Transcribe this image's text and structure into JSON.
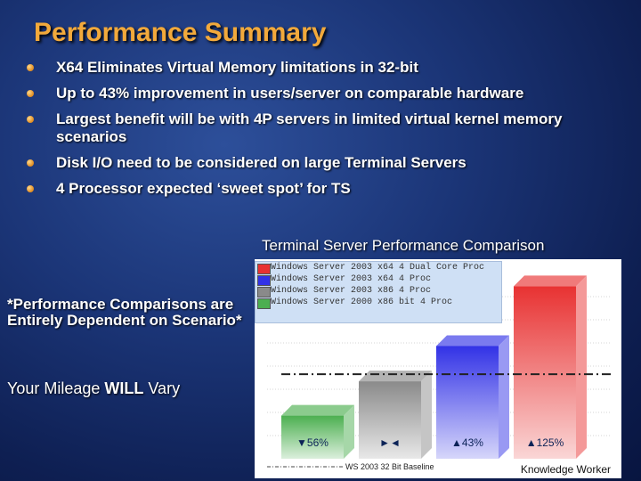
{
  "slide": {
    "title": "Performance Summary",
    "bullets": [
      "X64 Eliminates Virtual Memory limitations in 32-bit",
      "Up to 43% improvement in users/server on comparable hardware",
      "Largest benefit will be with 4P servers in limited virtual kernel memory scenarios",
      "Disk I/O need to be considered on large Terminal Servers",
      "4 Processor expected ‘sweet spot’ for TS"
    ],
    "disclaimer": "*Performance Comparisons are Entirely Dependent on Scenario*",
    "mileage_prefix": "Your Mileage ",
    "mileage_emphasis": "WILL",
    "mileage_suffix": " Vary"
  },
  "chart_data": {
    "type": "bar",
    "title": "Terminal Server Performance Comparison",
    "categories": [
      "Knowledge Worker"
    ],
    "baseline_label": "WS 2003 32 Bit Baseline",
    "series": [
      {
        "name": "Windows Server 2000 x86 bit 4 Proc",
        "value_label": "▼56%",
        "relative_height": 0.44,
        "color": "#4caf50"
      },
      {
        "name": "Windows Server 2003 x86 4 Proc",
        "value_label": "►◄",
        "relative_height": 0.79,
        "color": "#8a8a8a"
      },
      {
        "name": "Windows Server 2003 x64 4 Proc",
        "value_label": "▲43%",
        "relative_height": 1.15,
        "color": "#3232e6"
      },
      {
        "name": "Windows Server 2003 x64 4 Dual Core Proc",
        "value_label": "▲125%",
        "relative_height": 1.76,
        "color": "#e83232"
      }
    ],
    "legend": [
      {
        "label": "Windows Server 2003 x64 4 Dual Core Proc",
        "color": "#e83232"
      },
      {
        "label": "Windows Server 2003 x64 4 Proc",
        "color": "#3232e6"
      },
      {
        "label": "Windows Server 2003 x86 4 Proc",
        "color": "#8a8a8a"
      },
      {
        "label": "Windows Server 2000 x86 bit 4 Proc",
        "color": "#4caf50"
      }
    ],
    "legend_placement": "top-left",
    "grid": true
  }
}
